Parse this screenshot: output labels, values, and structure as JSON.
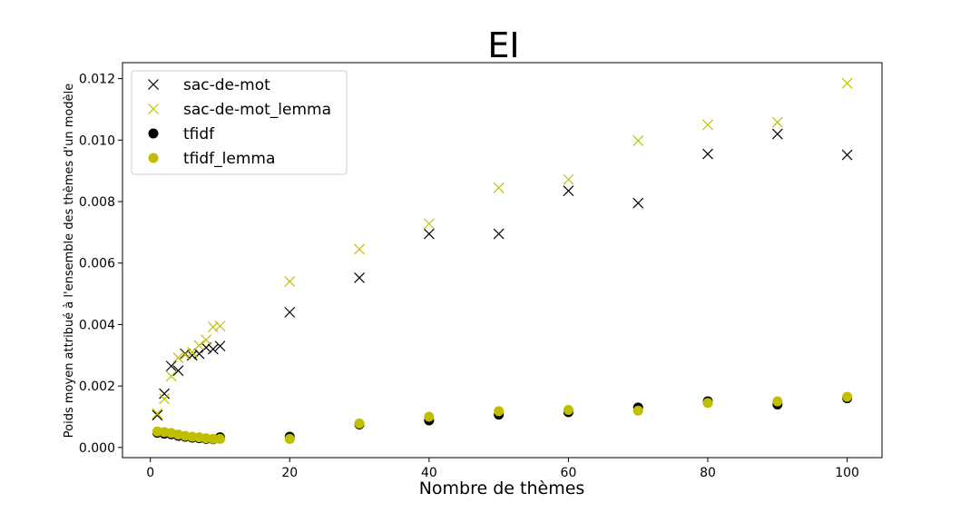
{
  "chart_data": {
    "type": "scatter",
    "title": "EI",
    "xlabel": "Nombre de thèmes",
    "ylabel": "Poids moyen attribué à l'ensemble des thèmes d'un modèle",
    "xlim": [
      -4,
      105
    ],
    "ylim": [
      -0.00033,
      0.01252
    ],
    "xticks": [
      0,
      20,
      40,
      60,
      80,
      100
    ],
    "yticks": [
      0.0,
      0.002,
      0.004,
      0.006,
      0.008,
      0.01,
      0.012
    ],
    "ytick_labels": [
      "0.000",
      "0.002",
      "0.004",
      "0.006",
      "0.008",
      "0.010",
      "0.012"
    ],
    "grid": false,
    "legend_position": "top-left",
    "x": [
      1,
      2,
      3,
      4,
      5,
      6,
      7,
      8,
      9,
      10,
      20,
      30,
      40,
      50,
      60,
      70,
      80,
      90,
      100
    ],
    "series": [
      {
        "name": "sac-de-mot",
        "marker": "x",
        "color": "#000000",
        "values": [
          0.00105,
          0.00175,
          0.00265,
          0.0025,
          0.00305,
          0.003,
          0.00305,
          0.00325,
          0.0032,
          0.0033,
          0.0044,
          0.00552,
          0.00695,
          0.00695,
          0.00835,
          0.00795,
          0.00955,
          0.0102,
          0.00952
        ]
      },
      {
        "name": "sac-de-mot_lemma",
        "marker": "x",
        "color": "#bfbf00",
        "values": [
          0.0011,
          0.00158,
          0.00232,
          0.00292,
          0.00302,
          0.0031,
          0.00332,
          0.0035,
          0.00392,
          0.00395,
          0.0054,
          0.00645,
          0.00728,
          0.00845,
          0.00872,
          0.00998,
          0.0105,
          0.01058,
          0.01185
        ]
      },
      {
        "name": "tfidf",
        "marker": "o",
        "color": "#000000",
        "values": [
          0.00048,
          0.00045,
          0.00043,
          0.00038,
          0.00035,
          0.00032,
          0.0003,
          0.00028,
          0.00027,
          0.00033,
          0.00035,
          0.00075,
          0.00088,
          0.00107,
          0.00115,
          0.0013,
          0.0015,
          0.0014,
          0.0016
        ]
      },
      {
        "name": "tfidf_lemma",
        "marker": "o",
        "color": "#bfbf00",
        "values": [
          0.00052,
          0.0005,
          0.00047,
          0.00042,
          0.00038,
          0.00035,
          0.00033,
          0.0003,
          0.00028,
          0.00028,
          0.00028,
          0.00078,
          0.001,
          0.00118,
          0.00122,
          0.0012,
          0.00145,
          0.0015,
          0.00165
        ]
      }
    ]
  }
}
